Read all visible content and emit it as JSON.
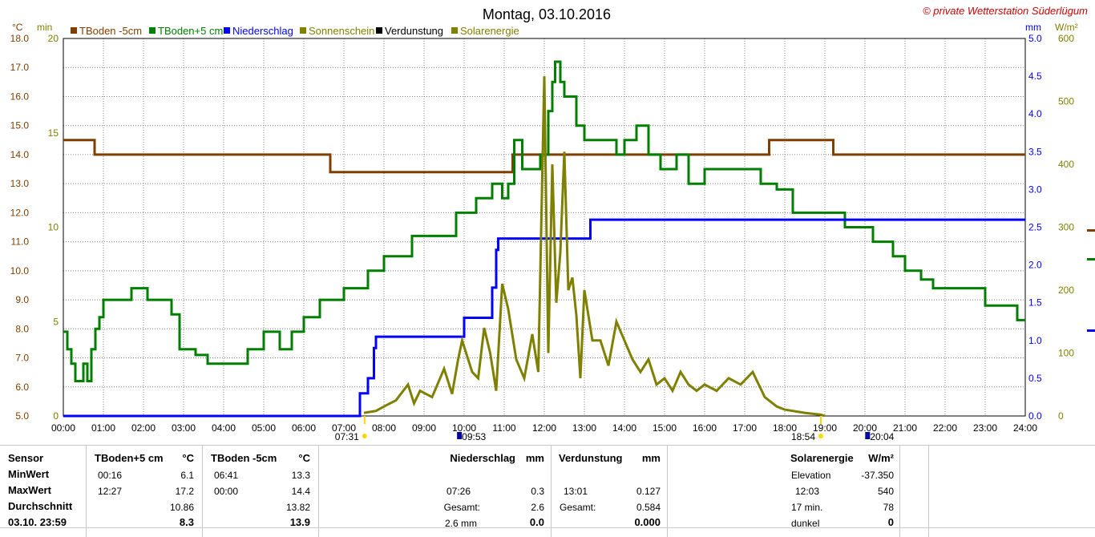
{
  "chart_data": {
    "type": "line",
    "title": "Montag, 03.10.2016",
    "copyright": "© private Wetterstation Süderlügum",
    "left_axis": {
      "unit": "°C",
      "ylim": [
        5.0,
        18.0
      ],
      "ticks": [
        "5.0",
        "6.0",
        "7.0",
        "8.0",
        "9.0",
        "10.0",
        "11.0",
        "12.0",
        "13.0",
        "14.0",
        "15.0",
        "16.0",
        "17.0",
        "18.0"
      ]
    },
    "left_axis2": {
      "unit": "min",
      "ylim": [
        0,
        20
      ],
      "ticks": [
        "0",
        "5",
        "10",
        "15",
        "20"
      ]
    },
    "right_axis": {
      "unit": "mm",
      "ylim": [
        0.0,
        5.0
      ],
      "ticks": [
        "0.0",
        "0.5",
        "1.0",
        "1.5",
        "2.0",
        "2.5",
        "3.0",
        "3.5",
        "4.0",
        "4.5",
        "5.0"
      ]
    },
    "right_axis2": {
      "unit": "W/m²",
      "ylim": [
        0,
        600
      ],
      "ticks": [
        "0",
        "100",
        "200",
        "300",
        "400",
        "500",
        "600"
      ]
    },
    "x_ticks": [
      "00:00",
      "01:00",
      "02:00",
      "03:00",
      "04:00",
      "05:00",
      "06:00",
      "07:00",
      "08:00",
      "09:00",
      "10:00",
      "11:00",
      "12:00",
      "13:00",
      "14:00",
      "15:00",
      "16:00",
      "17:00",
      "18:00",
      "19:00",
      "20:00",
      "21:00",
      "22:00",
      "23:00",
      "24:00"
    ],
    "sunrise": "07:31",
    "sunset": "18:54",
    "moon_marks": [
      "09:53",
      "20:04"
    ],
    "legend": [
      {
        "name": "TBoden -5cm",
        "color": "#7f3f00"
      },
      {
        "name": "TBoden+5 cm",
        "color": "#007f00"
      },
      {
        "name": "Niederschlag",
        "color": "#0000ff"
      },
      {
        "name": "Sonnenschein",
        "color": "#7f7f00"
      },
      {
        "name": "Verdunstung",
        "color": "#000000"
      },
      {
        "name": "Solarenergie",
        "color": "#7f7f00"
      }
    ],
    "series": [
      {
        "name": "TBoden -5cm",
        "axis": "left",
        "unit": "°C",
        "x": [
          0,
          0.77,
          0.78,
          6.65,
          6.66,
          11.2,
          11.21,
          17.6,
          17.61,
          19.2,
          19.21,
          24
        ],
        "values": [
          14.5,
          14.5,
          14.0,
          14.0,
          13.4,
          13.4,
          14.0,
          14.0,
          14.5,
          14.5,
          14.0,
          14.0
        ]
      },
      {
        "name": "TBoden+5 cm",
        "axis": "left",
        "unit": "°C",
        "x": [
          0,
          0.1,
          0.2,
          0.3,
          0.5,
          0.6,
          0.7,
          0.8,
          0.9,
          1.0,
          1.2,
          1.7,
          2.1,
          2.7,
          2.9,
          3.3,
          3.6,
          4.0,
          4.3,
          4.6,
          5.0,
          5.4,
          5.7,
          6.0,
          6.4,
          7.0,
          7.6,
          8.0,
          8.7,
          9.4,
          9.8,
          10.3,
          10.7,
          10.95,
          11.1,
          11.25,
          11.45,
          11.7,
          11.9,
          12.0,
          12.1,
          12.2,
          12.27,
          12.4,
          12.5,
          12.6,
          12.8,
          13.0,
          13.3,
          13.8,
          14.0,
          14.3,
          14.6,
          14.9,
          15.3,
          15.6,
          16.0,
          16.3,
          16.5,
          17.0,
          17.4,
          17.8,
          18.2,
          18.8,
          19.5,
          20.2,
          20.7,
          21.0,
          21.4,
          21.7,
          22.4,
          23.0,
          23.5,
          23.8,
          24.0
        ],
        "values": [
          7.9,
          7.3,
          6.8,
          6.2,
          6.8,
          6.2,
          7.3,
          8.0,
          8.4,
          9.0,
          9.0,
          9.4,
          9.0,
          8.5,
          7.3,
          7.1,
          6.8,
          6.8,
          6.8,
          7.3,
          7.9,
          7.3,
          7.9,
          8.4,
          9.0,
          9.4,
          10.0,
          10.5,
          11.2,
          11.2,
          12.0,
          12.5,
          13.0,
          12.5,
          13.0,
          14.5,
          13.5,
          13.5,
          14.0,
          14.0,
          15.5,
          16.5,
          17.2,
          16.5,
          16.0,
          16.0,
          15.0,
          14.5,
          14.5,
          14.0,
          14.5,
          15.0,
          14.0,
          13.5,
          14.0,
          13.0,
          13.5,
          13.5,
          13.5,
          13.5,
          13.0,
          12.8,
          12.0,
          12.0,
          11.5,
          11.0,
          10.5,
          10.0,
          9.7,
          9.4,
          9.4,
          8.8,
          8.8,
          8.3,
          8.3
        ]
      },
      {
        "name": "Niederschlag",
        "axis": "right",
        "unit": "mm",
        "x": [
          0,
          7.38,
          7.4,
          7.6,
          7.75,
          7.8,
          8.0,
          9.9,
          10.0,
          10.6,
          10.7,
          10.8,
          10.85,
          13.1,
          13.15,
          24
        ],
        "values": [
          0,
          0,
          0.3,
          0.5,
          0.9,
          1.05,
          1.05,
          1.05,
          1.3,
          1.3,
          1.7,
          2.2,
          2.35,
          2.35,
          2.6,
          2.6
        ]
      },
      {
        "name": "Solarenergie",
        "axis": "right2",
        "unit": "W/m²",
        "x": [
          7.5,
          7.8,
          8.0,
          8.3,
          8.6,
          8.75,
          8.9,
          9.2,
          9.4,
          9.5,
          9.7,
          9.85,
          9.95,
          10.2,
          10.35,
          10.5,
          10.65,
          10.8,
          10.95,
          11.1,
          11.3,
          11.5,
          11.7,
          11.85,
          12.0,
          12.1,
          12.2,
          12.3,
          12.4,
          12.5,
          12.6,
          12.7,
          12.8,
          12.9,
          13.0,
          13.2,
          13.4,
          13.6,
          13.8,
          14.0,
          14.2,
          14.4,
          14.6,
          14.8,
          15.0,
          15.2,
          15.4,
          15.6,
          15.8,
          16.0,
          16.3,
          16.6,
          16.9,
          17.2,
          17.5,
          17.8,
          18.0,
          18.5,
          18.9,
          19.0
        ],
        "values": [
          5,
          8,
          15,
          25,
          50,
          20,
          40,
          30,
          60,
          75,
          35,
          90,
          120,
          70,
          60,
          140,
          100,
          40,
          210,
          170,
          90,
          60,
          130,
          70,
          540,
          100,
          400,
          180,
          260,
          420,
          200,
          220,
          160,
          60,
          200,
          120,
          120,
          80,
          150,
          120,
          90,
          70,
          90,
          50,
          60,
          40,
          70,
          50,
          40,
          50,
          40,
          60,
          50,
          70,
          30,
          15,
          10,
          5,
          2,
          0
        ]
      },
      {
        "name": "Sonnenschein",
        "axis": "left2",
        "unit": "min",
        "values": []
      },
      {
        "name": "Verdunstung",
        "axis": "right",
        "unit": "mm",
        "values": []
      }
    ]
  },
  "stats": {
    "sensor": {
      "header": "Sensor",
      "rows": [
        "MinWert",
        "MaxWert",
        "Durchschnitt",
        "03.10. 23:59"
      ]
    },
    "tb5": {
      "name": "TBoden+5 cm",
      "unit": "°C",
      "min_time": "00:16",
      "min": "6.1",
      "max_time": "12:27",
      "max": "17.2",
      "avg": "10.86",
      "last": "8.3"
    },
    "tbm5": {
      "name": "TBoden -5cm",
      "unit": "°C",
      "min_time": "06:41",
      "min": "13.3",
      "max_time": "00:00",
      "max": "14.4",
      "avg": "13.82",
      "last": "13.9"
    },
    "rain": {
      "name": "Niederschlag",
      "unit": "mm",
      "max_time": "07:26",
      "max": "0.3",
      "sum_label": "Gesamt:",
      "sum": "2.6",
      "last_label": "2.6 mm",
      "last": "0.0"
    },
    "evap": {
      "name": "Verdunstung",
      "unit": "mm",
      "max_time": "13:01",
      "max": "0.127",
      "sum_label": "Gesamt:",
      "sum": "0.584",
      "last": "0.000"
    },
    "solar": {
      "name": "Solarenergie",
      "unit": "W/m²",
      "elev_label": "Elevation",
      "elev": "-37.350",
      "max_time": "12:03",
      "max": "540",
      "min17_label": "17 min.",
      "min17": "78",
      "dark_label": "dunkel",
      "dark": "0"
    }
  }
}
